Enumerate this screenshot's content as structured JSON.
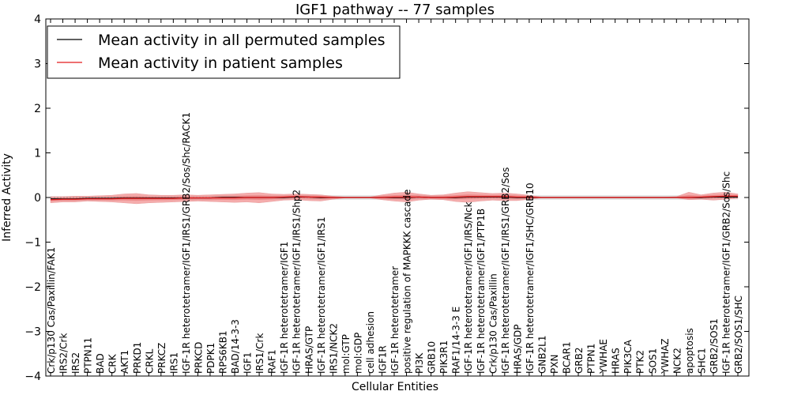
{
  "chart_data": {
    "type": "line",
    "title": "IGF1 pathway -- 77 samples",
    "xlabel": "Cellular Entities",
    "ylabel": "Inferred Activity",
    "ylim": [
      -4,
      4
    ],
    "yticks": [
      4,
      3,
      2,
      1,
      0,
      -1,
      -2,
      -3,
      -4
    ],
    "ytick_labels": [
      "4",
      "3",
      "2",
      "1",
      "0",
      "−1",
      "−2",
      "−3",
      "−4"
    ],
    "legend": {
      "position": "top-left",
      "entries": [
        {
          "label": "Mean activity in all permuted samples",
          "color": "#000000"
        },
        {
          "label": "Mean activity in patient samples",
          "color": "#e41a1c"
        }
      ]
    },
    "categories": [
      "Crk/p130 Cas/Paxillin/FAK1",
      "IRS2/Crk",
      "IRS2",
      "PTPN11",
      "BAD",
      "CRK",
      "AKT1",
      "PRKD1",
      "CRKL",
      "PRKCZ",
      "IRS1",
      "IGF-1R heterotetramer/IGF1/IRS1/GRB2/Sos/Shc/RACK1",
      "PRKCD",
      "PDPK1",
      "RPS6KB1",
      "BAD/14-3-3",
      "IGF1",
      "IRS1/Crk",
      "RAF1",
      "IGF-1R heterotetramer/IGF1",
      "IGF-1R heterotetramer/IGF1/IRS1/Shp2",
      "HRAS/GTP",
      "IGF-1R heterotetramer/IGF1/IRS1",
      "IRS1/NCK2",
      "mol:GTP",
      "mol:GDP",
      "cell adhesion",
      "IGF1R",
      "IGF-1R heterotetramer",
      "positive regulation of MAPKKK cascade",
      "PI3K",
      "GRB10",
      "PIK3R1",
      "RAF1/14-3-3 E",
      "IGF-1R heterotetramer/IGF1/IRS/Nck",
      "IGF-1R heterotetramer/IGF1/PTP1B",
      "Crk/p130 Cas/Paxillin",
      "IGF-1R heterotetramer/IGF1/IRS1/GRB2/Sos",
      "HRAS/GDP",
      "IGF-1R heterotetramer/IGF1/SHC/GRB10",
      "GNB2L1",
      "PXN",
      "BCAR1",
      "GRB2",
      "PTPN1",
      "YWHAE",
      "HRAS",
      "PIK3CA",
      "PTK2",
      "SOS1",
      "YWHAZ",
      "NCK2",
      "apoptosis",
      "SHC1",
      "GRB2/SOS1",
      "IGF-1R heterotetramer/IGF1/GRB2/Sos/Shc",
      "GRB2/SOS1/SHC"
    ],
    "series": [
      {
        "name": "Mean activity in patient samples",
        "color": "#e41a1c",
        "values": [
          -0.05,
          -0.04,
          -0.04,
          -0.03,
          -0.03,
          -0.03,
          -0.02,
          -0.02,
          -0.02,
          -0.02,
          -0.02,
          -0.01,
          -0.01,
          -0.01,
          -0.01,
          -0.01,
          0.0,
          0.0,
          0.0,
          0.01,
          0.02,
          0.01,
          0.01,
          0.0,
          0.0,
          0.0,
          0.0,
          0.0,
          0.01,
          0.01,
          0.01,
          0.0,
          0.0,
          0.01,
          0.02,
          0.02,
          0.02,
          0.02,
          0.01,
          0.01,
          0.0,
          0.0,
          0.0,
          0.0,
          0.0,
          0.0,
          0.0,
          0.0,
          0.0,
          0.0,
          0.0,
          0.0,
          0.0,
          0.01,
          0.02,
          0.03,
          0.03
        ],
        "spread_low": [
          -0.12,
          -0.1,
          -0.1,
          -0.08,
          -0.09,
          -0.1,
          -0.12,
          -0.14,
          -0.12,
          -0.11,
          -0.1,
          -0.09,
          -0.08,
          -0.09,
          -0.1,
          -0.11,
          -0.1,
          -0.12,
          -0.09,
          -0.06,
          -0.05,
          -0.07,
          -0.08,
          -0.04,
          -0.01,
          -0.01,
          -0.01,
          -0.05,
          -0.08,
          -0.1,
          -0.06,
          -0.04,
          -0.05,
          -0.09,
          -0.11,
          -0.08,
          -0.06,
          -0.07,
          -0.07,
          -0.04,
          -0.01,
          -0.01,
          -0.01,
          -0.01,
          -0.01,
          -0.01,
          -0.01,
          -0.01,
          -0.01,
          -0.01,
          -0.01,
          -0.01,
          -0.05,
          -0.04,
          -0.06,
          -0.04,
          -0.02
        ],
        "spread_high": [
          0.02,
          0.02,
          0.03,
          0.03,
          0.04,
          0.05,
          0.08,
          0.09,
          0.06,
          0.05,
          0.05,
          0.06,
          0.05,
          0.06,
          0.07,
          0.08,
          0.1,
          0.11,
          0.08,
          0.07,
          0.08,
          0.07,
          0.06,
          0.03,
          0.01,
          0.01,
          0.01,
          0.06,
          0.1,
          0.12,
          0.08,
          0.05,
          0.06,
          0.1,
          0.13,
          0.11,
          0.09,
          0.1,
          0.08,
          0.05,
          0.01,
          0.01,
          0.01,
          0.01,
          0.01,
          0.01,
          0.01,
          0.01,
          0.01,
          0.01,
          0.01,
          0.02,
          0.12,
          0.06,
          0.1,
          0.12,
          0.08
        ]
      },
      {
        "name": "Mean activity in all permuted samples",
        "color": "#000000",
        "values": [
          -0.03,
          -0.03,
          -0.03,
          -0.02,
          -0.02,
          -0.02,
          -0.01,
          -0.01,
          -0.01,
          -0.01,
          -0.01,
          -0.01,
          -0.01,
          -0.01,
          0.0,
          0.0,
          0.0,
          0.0,
          0.0,
          0.0,
          0.01,
          0.01,
          0.0,
          0.0,
          0.0,
          0.0,
          0.0,
          0.0,
          0.0,
          0.0,
          0.01,
          0.0,
          0.0,
          0.0,
          0.01,
          0.01,
          0.01,
          0.01,
          0.0,
          0.0,
          0.0,
          0.0,
          0.0,
          0.0,
          0.0,
          0.0,
          0.0,
          0.0,
          0.0,
          0.0,
          0.0,
          0.0,
          0.0,
          0.0,
          0.01,
          0.01,
          0.01
        ],
        "spread": 0.05
      }
    ]
  }
}
